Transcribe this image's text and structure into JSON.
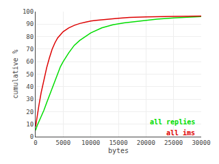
{
  "chart_data": {
    "type": "line",
    "xlabel": "bytes",
    "ylabel": "cumulative %",
    "xlim": [
      0,
      30000
    ],
    "ylim": [
      0,
      100
    ],
    "xticks": [
      0,
      5000,
      10000,
      15000,
      20000,
      25000,
      30000
    ],
    "yticks": [
      0,
      10,
      20,
      30,
      40,
      50,
      60,
      70,
      80,
      90,
      100
    ],
    "grid": true,
    "series": [
      {
        "name": "all replies",
        "color": "#00dd00",
        "x": [
          0,
          100,
          300,
          600,
          1000,
          1500,
          2000,
          2500,
          3000,
          3500,
          4000,
          4500,
          5000,
          6000,
          7000,
          8000,
          9000,
          10000,
          12000,
          14000,
          16000,
          18000,
          20000,
          22000,
          25000,
          28000,
          30000
        ],
        "values": [
          5,
          6.5,
          9,
          12,
          16,
          21,
          27,
          33,
          39,
          45,
          51,
          56,
          60,
          67,
          73,
          77,
          80,
          83,
          87,
          89.5,
          91,
          92,
          93,
          94,
          95,
          95.5,
          96
        ]
      },
      {
        "name": "all ims",
        "color": "#dd0000",
        "x": [
          0,
          100,
          300,
          600,
          1000,
          1500,
          2000,
          2500,
          3000,
          3500,
          4000,
          5000,
          6000,
          7000,
          8000,
          9000,
          10000,
          11000,
          12000,
          13000,
          14000,
          15000,
          17000,
          20000,
          25000,
          30000
        ],
        "values": [
          8,
          11,
          17,
          25,
          35,
          45,
          55,
          63,
          70,
          75,
          79,
          84,
          87,
          89,
          90.5,
          91.5,
          92.5,
          93,
          93.5,
          94,
          94.4,
          94.7,
          95.3,
          95.8,
          96.2,
          96.5
        ]
      }
    ]
  }
}
